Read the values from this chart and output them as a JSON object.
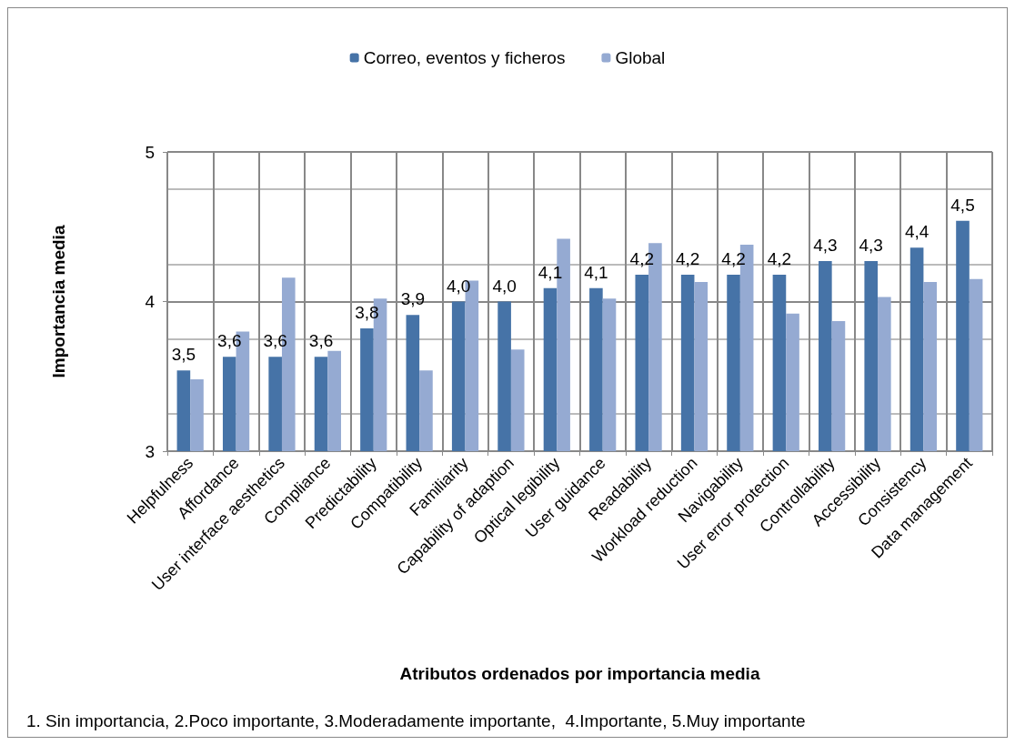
{
  "chart_data": {
    "type": "bar",
    "xlabel": "Atributos ordenados por importancia media",
    "ylabel": "Importancia media",
    "annotations": [
      "1. Sin importancia, 2.Poco importante, 3.Moderadamente importante,  4.Importante, 5.Muy importante"
    ],
    "categories": [
      "Helpfulness",
      "Affordance",
      "User interface aesthetics",
      "Compliance",
      "Predictability",
      "Compatibility",
      "Familiarity",
      "Capability of adaption",
      "Optical legibility",
      "User guidance",
      "Readability",
      "Workload reduction",
      "Navigability",
      "User error protection",
      "Controllability",
      "Accessibility",
      "Consistency",
      "Data management"
    ],
    "series": [
      {
        "name": "Correo, eventos y ficheros",
        "color": "#4673a7",
        "values": [
          3.54,
          3.63,
          3.63,
          3.63,
          3.82,
          3.91,
          4.0,
          4.0,
          4.09,
          4.09,
          4.18,
          4.18,
          4.18,
          4.18,
          4.27,
          4.27,
          4.36,
          4.54
        ],
        "value_labels": [
          "3,5",
          "3,6",
          "3,6",
          "3,6",
          "3,8",
          "3,9",
          "4,0",
          "4,0",
          "4,1",
          "4,1",
          "4,2",
          "4,2",
          "4,2",
          "4,2",
          "4,3",
          "4,3",
          "4,4",
          "4,5"
        ]
      },
      {
        "name": "Global",
        "color": "#95aad2",
        "values": [
          3.48,
          3.8,
          4.16,
          3.67,
          4.02,
          3.54,
          4.14,
          3.68,
          4.42,
          4.02,
          4.39,
          4.13,
          4.38,
          3.92,
          3.87,
          4.03,
          4.13,
          4.15
        ]
      }
    ],
    "ylim": [
      3,
      5
    ],
    "yticks": [
      3,
      4,
      5
    ],
    "grid": true,
    "legend": "top"
  }
}
